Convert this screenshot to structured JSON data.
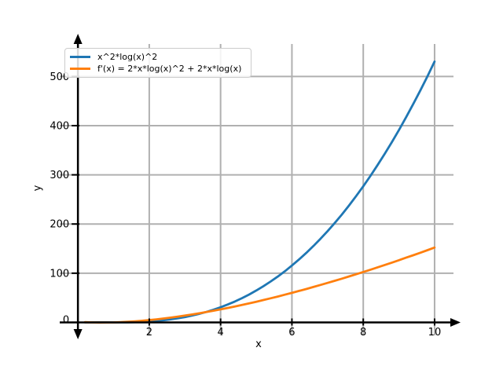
{
  "figure": {
    "background": "#ffffff"
  },
  "chart_data": {
    "type": "line",
    "title": "",
    "xlabel": "x",
    "ylabel": "y",
    "xlim": [
      -0.51,
      10.53
    ],
    "ylim": [
      -26.4,
      566
    ],
    "xticks": [
      2,
      4,
      6,
      8,
      10
    ],
    "yticks": [
      0,
      100,
      200,
      300,
      400,
      500
    ],
    "grid": true,
    "grid_color": "#b0b0b0",
    "axis_color": "#000000",
    "legend_position": "upper left",
    "x": [
      0.2,
      0.4,
      0.6,
      0.8,
      1.0,
      1.2,
      1.4,
      1.6,
      1.8,
      2.0,
      2.2,
      2.4,
      2.6,
      2.8,
      3.0,
      3.2,
      3.4,
      3.6,
      3.8,
      4.0,
      4.2,
      4.4,
      4.6,
      4.8,
      5.0,
      5.2,
      5.4,
      5.6,
      5.8,
      6.0,
      6.2,
      6.4,
      6.6,
      6.8,
      7.0,
      7.2,
      7.4,
      7.6,
      7.8,
      8.0,
      8.2,
      8.4,
      8.6,
      8.8,
      9.0,
      9.2,
      9.4,
      9.6,
      9.8,
      10.0
    ],
    "series": [
      {
        "name": "x^2*log(x)^2",
        "color": "#1f77b4",
        "values": [
          0.1,
          0.13,
          0.09,
          0.03,
          0.0,
          0.05,
          0.22,
          0.57,
          1.12,
          1.92,
          3.01,
          4.42,
          6.17,
          8.31,
          10.86,
          13.86,
          17.31,
          21.26,
          25.74,
          30.75,
          36.33,
          42.5,
          49.28,
          56.69,
          64.76,
          73.5,
          82.93,
          93.08,
          103.95,
          115.58,
          127.96,
          141.14,
          155.12,
          169.91,
          185.54,
          202.03,
          219.37,
          237.58,
          256.7,
          276.73,
          297.69,
          319.58,
          342.45,
          366.27,
          391.04,
          416.84,
          443.63,
          471.46,
          500.3,
          530.19
        ]
      },
      {
        "name": "f'(x) = 2*x*log(x)^2 + 2*x*log(x)",
        "color": "#ff7f0e",
        "values": [
          0.39,
          -0.06,
          -0.3,
          -0.28,
          0.0,
          0.52,
          1.26,
          2.21,
          3.36,
          4.69,
          6.21,
          7.88,
          9.72,
          11.7,
          13.83,
          16.1,
          18.51,
          21.04,
          23.69,
          26.47,
          29.36,
          32.36,
          35.47,
          38.68,
          42.0,
          45.42,
          48.93,
          52.54,
          56.24,
          60.03,
          63.9,
          67.87,
          71.92,
          76.04,
          80.25,
          84.54,
          88.91,
          93.35,
          97.87,
          102.45,
          107.11,
          111.84,
          116.65,
          121.52,
          126.45,
          131.45,
          136.52,
          141.65,
          146.83,
          152.09
        ]
      }
    ]
  }
}
